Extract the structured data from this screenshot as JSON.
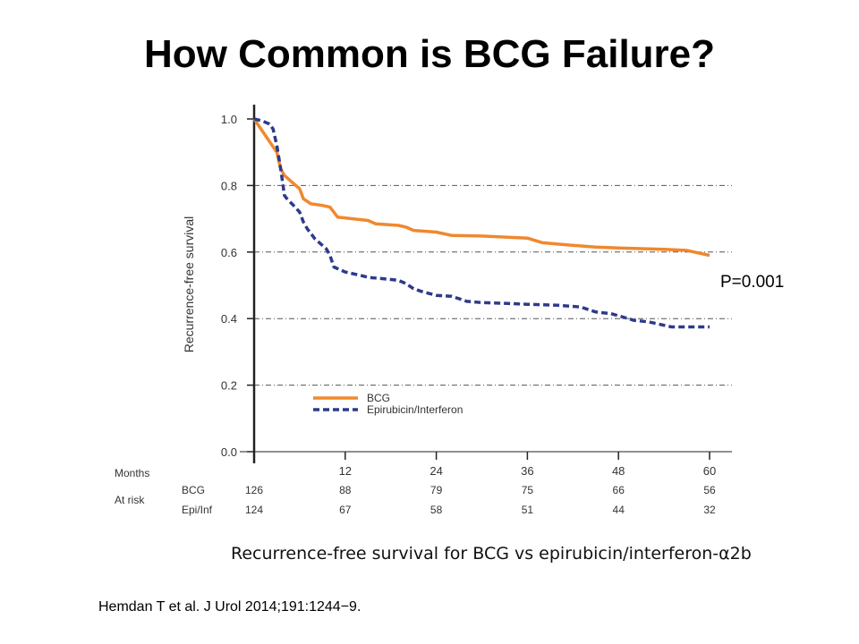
{
  "slide": {
    "title": "How Common is BCG Failure?",
    "caption": "Recurrence-free survival for BCG vs epirubicin/interferon-α2b",
    "citation": "Hemdan T et al. J Urol 2014;191:1244−9."
  },
  "colors": {
    "bcg": "#f0882e",
    "epi": "#2d3a8c",
    "axis": "#222222",
    "grid": "#555555",
    "text": "#333333"
  },
  "chart_data": {
    "type": "line",
    "ylabel": "Recurrence-free survival",
    "xlabel": "Months",
    "xlim": [
      0,
      60
    ],
    "ylim": [
      0,
      1
    ],
    "y_ticks": [
      "1.0",
      "0.8",
      "0.6",
      "0.4",
      "0.2",
      "0.0"
    ],
    "y_tick_values": [
      1.0,
      0.8,
      0.6,
      0.4,
      0.2,
      0.0
    ],
    "x_ticks": [
      "12",
      "24",
      "36",
      "48",
      "60"
    ],
    "x_tick_values": [
      12,
      24,
      36,
      48,
      60
    ],
    "grid": "dash-dot horizontal lines at 0.2, 0.4, 0.6, 0.8",
    "p_value": "P=0.001",
    "legend": {
      "placement": "lower-center"
    },
    "at_risk": {
      "label": "At risk",
      "months_label": "Months",
      "rows": [
        {
          "label": "BCG",
          "values": [
            "126",
            "88",
            "79",
            "75",
            "66",
            "56"
          ]
        },
        {
          "label": "Epi/Inf",
          "values": [
            "124",
            "67",
            "58",
            "51",
            "44",
            "32"
          ]
        }
      ]
    },
    "series": [
      {
        "name": "BCG",
        "style": "solid",
        "points": [
          [
            0,
            1.0
          ],
          [
            1.5,
            0.95
          ],
          [
            3,
            0.9
          ],
          [
            3.5,
            0.85
          ],
          [
            4,
            0.83
          ],
          [
            5,
            0.81
          ],
          [
            6,
            0.79
          ],
          [
            6.5,
            0.76
          ],
          [
            7.5,
            0.745
          ],
          [
            9,
            0.74
          ],
          [
            10,
            0.735
          ],
          [
            10.5,
            0.72
          ],
          [
            11,
            0.705
          ],
          [
            13,
            0.7
          ],
          [
            15,
            0.695
          ],
          [
            16,
            0.685
          ],
          [
            19,
            0.68
          ],
          [
            20,
            0.675
          ],
          [
            21,
            0.665
          ],
          [
            24,
            0.66
          ],
          [
            26,
            0.65
          ],
          [
            30,
            0.648
          ],
          [
            36,
            0.642
          ],
          [
            37,
            0.635
          ],
          [
            38,
            0.628
          ],
          [
            41,
            0.622
          ],
          [
            45,
            0.615
          ],
          [
            48,
            0.612
          ],
          [
            54,
            0.608
          ],
          [
            57,
            0.605
          ],
          [
            58,
            0.6
          ],
          [
            60,
            0.59
          ]
        ]
      },
      {
        "name": "Epirubicin/Interferon",
        "style": "dashed",
        "points": [
          [
            0,
            1.0
          ],
          [
            1,
            0.995
          ],
          [
            2,
            0.985
          ],
          [
            2.5,
            0.97
          ],
          [
            3,
            0.92
          ],
          [
            3.5,
            0.85
          ],
          [
            4,
            0.77
          ],
          [
            4.5,
            0.755
          ],
          [
            5,
            0.745
          ],
          [
            6,
            0.72
          ],
          [
            6.5,
            0.69
          ],
          [
            7,
            0.67
          ],
          [
            8,
            0.64
          ],
          [
            9,
            0.62
          ],
          [
            9.5,
            0.61
          ],
          [
            10,
            0.59
          ],
          [
            10.5,
            0.555
          ],
          [
            11,
            0.55
          ],
          [
            12,
            0.54
          ],
          [
            13,
            0.535
          ],
          [
            14,
            0.53
          ],
          [
            15,
            0.524
          ],
          [
            17,
            0.52
          ],
          [
            19,
            0.515
          ],
          [
            20,
            0.505
          ],
          [
            21,
            0.49
          ],
          [
            22,
            0.482
          ],
          [
            24,
            0.47
          ],
          [
            26,
            0.467
          ],
          [
            27,
            0.46
          ],
          [
            28,
            0.452
          ],
          [
            30,
            0.448
          ],
          [
            33,
            0.446
          ],
          [
            36,
            0.443
          ],
          [
            40,
            0.44
          ],
          [
            43,
            0.435
          ],
          [
            45,
            0.42
          ],
          [
            47,
            0.415
          ],
          [
            49,
            0.402
          ],
          [
            50,
            0.395
          ],
          [
            52,
            0.39
          ],
          [
            53,
            0.385
          ],
          [
            55,
            0.375
          ],
          [
            57,
            0.375
          ],
          [
            60,
            0.375
          ]
        ]
      }
    ]
  }
}
